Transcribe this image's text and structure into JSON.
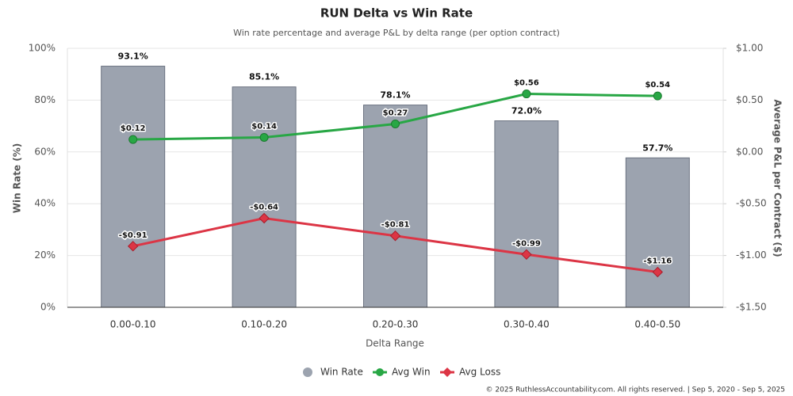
{
  "chart_data": {
    "type": "bar",
    "title": "RUN Delta vs Win Rate",
    "subtitle": "Win rate percentage and average P&L by delta range (per option contract)",
    "x_label": "Delta Range",
    "y_label": "Win Rate (%)",
    "y2_label": "Average P&L per Contract ($)",
    "categories": [
      "0.00-0.10",
      "0.10-0.20",
      "0.20-0.30",
      "0.30-0.40",
      "0.40-0.50"
    ],
    "series": [
      {
        "name": "Win Rate",
        "type": "bar",
        "color": "#9ca3af",
        "values": [
          93.1,
          85.1,
          78.1,
          72.0,
          57.7
        ],
        "value_labels": [
          "93.1%",
          "85.1%",
          "78.1%",
          "72.0%",
          "57.7%"
        ]
      },
      {
        "name": "Avg Win",
        "type": "line",
        "axis": "y2",
        "color": "#28a745",
        "values": [
          0.12,
          0.14,
          0.27,
          0.56,
          0.54
        ],
        "value_labels": [
          "$0.12",
          "$0.14",
          "$0.27",
          "$0.56",
          "$0.54"
        ]
      },
      {
        "name": "Avg Loss",
        "type": "line",
        "axis": "y2",
        "color": "#dc3545",
        "values": [
          -0.91,
          -0.64,
          -0.81,
          -0.99,
          -1.16
        ],
        "value_labels": [
          "-$0.91",
          "-$0.64",
          "-$0.81",
          "-$0.99",
          "-$1.16"
        ]
      }
    ],
    "ylim": [
      0,
      100
    ],
    "yticks": [
      {
        "value": 0,
        "label": "0%"
      },
      {
        "value": 20,
        "label": "20%"
      },
      {
        "value": 40,
        "label": "40%"
      },
      {
        "value": 60,
        "label": "60%"
      },
      {
        "value": 80,
        "label": "80%"
      },
      {
        "value": 100,
        "label": "100%"
      }
    ],
    "y2lim": [
      -1.5,
      1
    ],
    "y2ticks": [
      {
        "value": -1.5,
        "label": "-$1.50"
      },
      {
        "value": -1,
        "label": "-$1.00"
      },
      {
        "value": -0.5,
        "label": "-$0.50"
      },
      {
        "value": 0,
        "label": "$0.00"
      },
      {
        "value": 0.5,
        "label": "$0.50"
      },
      {
        "value": 1,
        "label": "$1.00"
      }
    ],
    "grid": true,
    "legend": "bottom",
    "footer": "© 2025 RuthlessAccountability.com. All rights reserved. | Sep 5, 2020 - Sep 5, 2025"
  }
}
